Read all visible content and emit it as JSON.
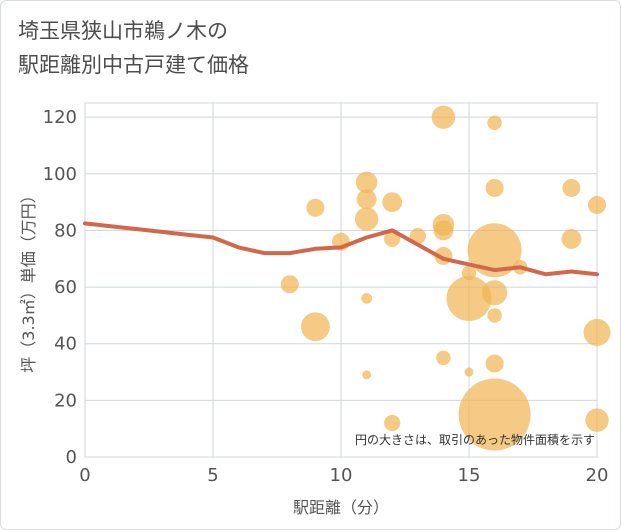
{
  "title_line1": "埼玉県狭山市鵜ノ木の",
  "title_line2": "駅距離別中古戸建て価格",
  "chart_data": {
    "type": "scatter",
    "title": "埼玉県狭山市鵜ノ木の駅距離別中古戸建て価格",
    "xlabel": "駅距離（分）",
    "ylabel": "坪（3.3㎡）単価（万円）",
    "xlim": [
      0,
      20
    ],
    "ylim": [
      0,
      125
    ],
    "xticks": [
      0,
      5,
      10,
      15,
      20
    ],
    "yticks": [
      0,
      20,
      40,
      60,
      80,
      100,
      120
    ],
    "note": "円の大きさは、取引のあった物件面積を示す",
    "colors": {
      "bubble": "#f0b655",
      "trend": "#d4664a"
    },
    "bubbles": [
      {
        "x": 8,
        "y": 61,
        "s": 1.0
      },
      {
        "x": 9,
        "y": 88,
        "s": 1.0
      },
      {
        "x": 9,
        "y": 46,
        "s": 1.6
      },
      {
        "x": 10,
        "y": 76,
        "s": 1.0
      },
      {
        "x": 11,
        "y": 97,
        "s": 1.2
      },
      {
        "x": 11,
        "y": 91,
        "s": 1.1
      },
      {
        "x": 11,
        "y": 84,
        "s": 1.3
      },
      {
        "x": 11,
        "y": 56,
        "s": 0.6
      },
      {
        "x": 11,
        "y": 29,
        "s": 0.5
      },
      {
        "x": 12,
        "y": 90,
        "s": 1.1
      },
      {
        "x": 12,
        "y": 77,
        "s": 0.9
      },
      {
        "x": 12,
        "y": 12,
        "s": 0.9
      },
      {
        "x": 13,
        "y": 78,
        "s": 0.9
      },
      {
        "x": 14,
        "y": 120,
        "s": 1.3
      },
      {
        "x": 14,
        "y": 82,
        "s": 1.2
      },
      {
        "x": 14,
        "y": 80,
        "s": 1.1
      },
      {
        "x": 14,
        "y": 71,
        "s": 1.0
      },
      {
        "x": 14,
        "y": 35,
        "s": 0.8
      },
      {
        "x": 15,
        "y": 65,
        "s": 0.8
      },
      {
        "x": 15,
        "y": 56,
        "s": 2.5
      },
      {
        "x": 15,
        "y": 30,
        "s": 0.5
      },
      {
        "x": 16,
        "y": 118,
        "s": 0.8
      },
      {
        "x": 16,
        "y": 95,
        "s": 1.0
      },
      {
        "x": 16,
        "y": 73,
        "s": 3.0
      },
      {
        "x": 16,
        "y": 58,
        "s": 1.4
      },
      {
        "x": 16,
        "y": 50,
        "s": 0.8
      },
      {
        "x": 16,
        "y": 33,
        "s": 1.0
      },
      {
        "x": 16,
        "y": 15,
        "s": 4.0
      },
      {
        "x": 17,
        "y": 67,
        "s": 0.8
      },
      {
        "x": 19,
        "y": 95,
        "s": 1.0
      },
      {
        "x": 19,
        "y": 77,
        "s": 1.1
      },
      {
        "x": 20,
        "y": 89,
        "s": 1.0
      },
      {
        "x": 20,
        "y": 44,
        "s": 1.5
      },
      {
        "x": 20,
        "y": 13,
        "s": 1.3
      }
    ],
    "trend": {
      "x": [
        0,
        1,
        2,
        3,
        4,
        5,
        6,
        7,
        8,
        9,
        10,
        11,
        12,
        13,
        14,
        15,
        16,
        17,
        18,
        19,
        20
      ],
      "y": [
        82.5,
        81.5,
        80.5,
        79.5,
        78.5,
        77.5,
        74,
        72,
        72,
        73.5,
        74,
        77.5,
        80,
        75,
        70,
        68,
        66,
        67,
        64.5,
        65.5,
        64.5
      ]
    }
  }
}
